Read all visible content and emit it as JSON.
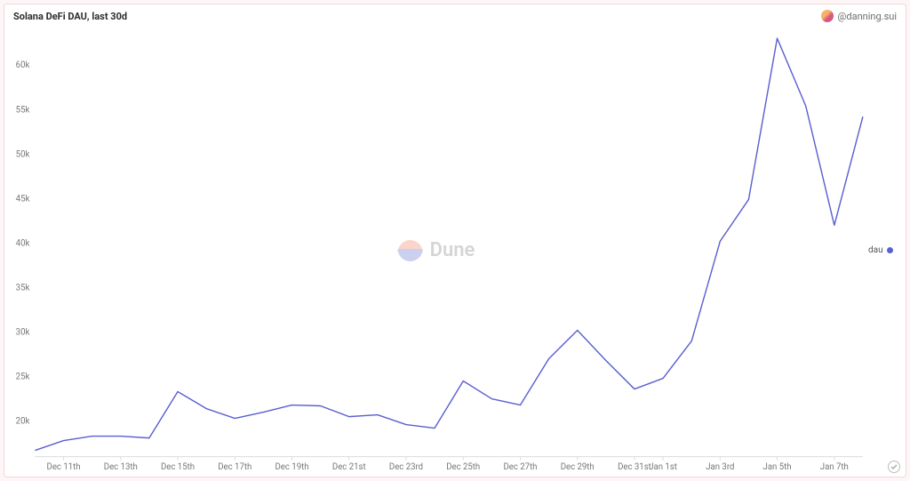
{
  "header": {
    "title": "Solana DeFi DAU, last 30d",
    "author_handle": "@danning.sui"
  },
  "watermark": {
    "text": "Dune",
    "logo_top_color": "#f5876e",
    "logo_bottom_color": "#6e7bd6"
  },
  "legend": {
    "label": "dau",
    "color": "#5a5fd1"
  },
  "chart": {
    "type": "line",
    "background_color": "#ffffff",
    "line_color": "#5a5fd1",
    "line_width": 1.4,
    "y_axis": {
      "min": 16000,
      "max": 64000,
      "ticks": [
        20000,
        25000,
        30000,
        35000,
        40000,
        45000,
        50000,
        55000,
        60000
      ],
      "tick_labels": [
        "20k",
        "25k",
        "30k",
        "35k",
        "40k",
        "45k",
        "50k",
        "55k",
        "60k"
      ],
      "label_fontsize": 9.5,
      "label_color": "#777"
    },
    "x_axis": {
      "tick_labels": [
        "Dec 11th",
        "Dec 13th",
        "Dec 15th",
        "Dec 17th",
        "Dec 19th",
        "Dec 21st",
        "Dec 23rd",
        "Dec 25th",
        "Dec 27th",
        "Dec 29th",
        "Dec 31st",
        "Jan 1st",
        "Jan 3rd",
        "Jan 5th",
        "Jan 7th"
      ],
      "tick_positions": [
        1,
        3,
        5,
        7,
        9,
        11,
        13,
        15,
        17,
        19,
        21,
        22,
        24,
        26,
        28
      ],
      "label_fontsize": 9.5,
      "label_color": "#777"
    },
    "series": {
      "name": "dau",
      "values": [
        16700,
        17800,
        18300,
        18300,
        18100,
        23300,
        21400,
        20300,
        21000,
        21800,
        21700,
        20500,
        20700,
        19600,
        19200,
        24500,
        22500,
        21800,
        27000,
        30200,
        26800,
        23600,
        24800,
        29000,
        40200,
        44900,
        63000,
        55400,
        42000,
        54200
      ]
    }
  }
}
